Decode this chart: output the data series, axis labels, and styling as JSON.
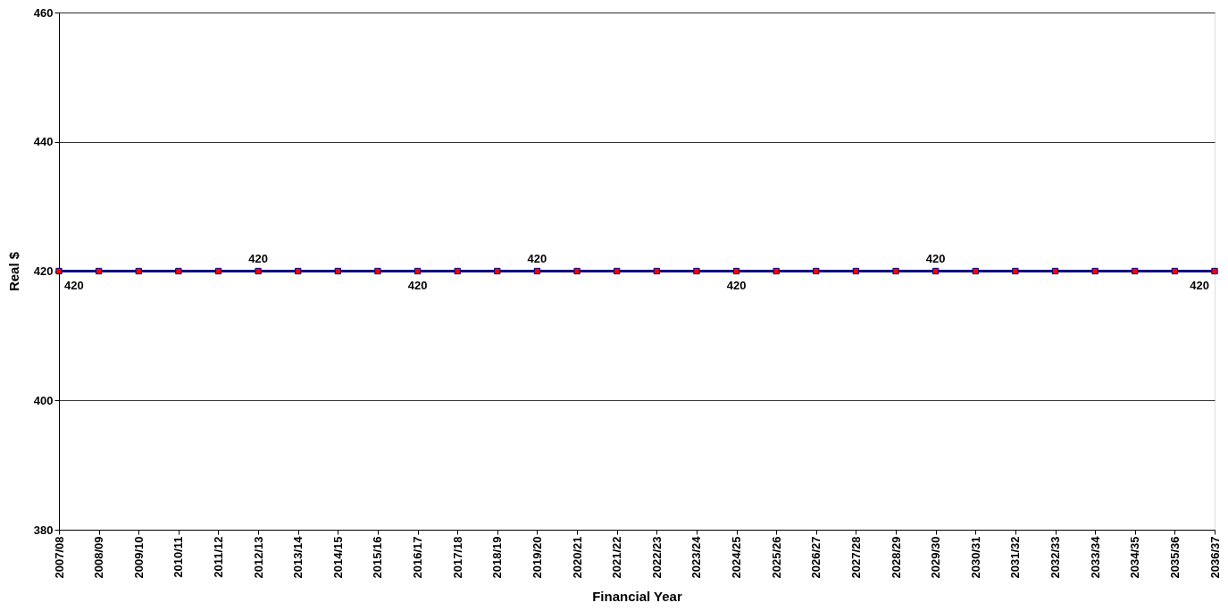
{
  "chart_data": {
    "type": "line",
    "xlabel": "Financial Year",
    "ylabel": "Real $",
    "categories": [
      "2007/08",
      "2008/09",
      "2009/10",
      "2010/11",
      "2011/12",
      "2012/13",
      "2013/14",
      "2014/15",
      "2015/16",
      "2016/17",
      "2017/18",
      "2018/19",
      "2019/20",
      "2020/21",
      "2021/22",
      "2022/23",
      "2023/24",
      "2024/25",
      "2025/26",
      "2026/27",
      "2027/28",
      "2028/29",
      "2029/30",
      "2030/31",
      "2031/32",
      "2032/33",
      "2033/34",
      "2034/35",
      "2035/36",
      "2036/37"
    ],
    "series": [
      {
        "color": "#000080",
        "values": [
          420,
          420,
          420,
          420,
          420,
          420,
          420,
          420,
          420,
          420,
          420,
          420,
          420,
          420,
          420,
          420,
          420,
          420,
          420,
          420,
          420,
          420,
          420,
          420,
          420,
          420,
          420,
          420,
          420,
          420
        ],
        "colors": [
          "#ff0000",
          "#ff0000",
          "#ff0000",
          "#ff0000",
          "#ff0000",
          "#ff0000",
          "#ff0000",
          "#ff0000",
          "#ff0000",
          "#ff0000",
          "#ff0000",
          "#ff0000",
          "#ff0000",
          "#ff0000",
          "#ff0000",
          "#ff0000",
          "#ff0000",
          "#ff0000",
          "#ff0000",
          "#ff0000",
          "#ff0000",
          "#ff0000",
          "#ff0000",
          "#ff0000",
          "#ff0000",
          "#ff0000",
          "#ff0000",
          "#ff0000",
          "#ff0000",
          "#ff0000"
        ],
        "value_labels": [
          "420",
          null,
          null,
          null,
          null,
          "420",
          null,
          null,
          null,
          "420",
          null,
          null,
          "420",
          null,
          null,
          null,
          null,
          "420",
          null,
          null,
          null,
          null,
          "420",
          null,
          null,
          null,
          null,
          null,
          null,
          "420"
        ]
      }
    ],
    "ylim": [
      380,
      460
    ],
    "yticks": [
      380,
      400,
      420,
      440,
      460
    ],
    "grid": "y",
    "marker": "square",
    "line_style": "solid"
  }
}
